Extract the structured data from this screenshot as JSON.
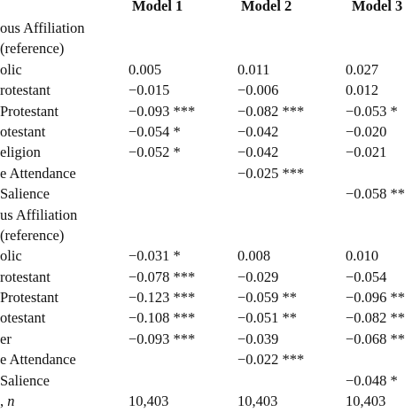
{
  "table": {
    "headers": [
      "Model 1",
      "Model 2",
      "Model 3"
    ],
    "rows": [
      {
        "label": "ous Affiliation",
        "values": [
          "",
          "",
          ""
        ]
      },
      {
        "label": "(reference)",
        "values": [
          "",
          "",
          ""
        ]
      },
      {
        "label": "olic",
        "values": [
          "0.005",
          "0.011",
          "0.027"
        ]
      },
      {
        "label": "rotestant",
        "values": [
          "−0.015",
          "−0.006",
          "0.012"
        ]
      },
      {
        "label": " Protestant",
        "values": [
          "−0.093 ***",
          "−0.082 ***",
          "−0.053 *"
        ]
      },
      {
        "label": "otestant",
        "values": [
          "−0.054 *",
          "−0.042",
          "−0.020"
        ]
      },
      {
        "label": "eligion",
        "values": [
          "−0.052 *",
          "−0.042",
          "−0.021"
        ]
      },
      {
        "label": "e Attendance",
        "values": [
          "",
          "−0.025 ***",
          ""
        ]
      },
      {
        "label": "Salience",
        "values": [
          "",
          "",
          "−0.058 **"
        ]
      },
      {
        "label": "us Affiliation",
        "values": [
          "",
          "",
          ""
        ]
      },
      {
        "label": "(reference)",
        "values": [
          "",
          "",
          ""
        ]
      },
      {
        "label": "olic",
        "values": [
          "−0.031 *",
          "0.008",
          "0.010"
        ]
      },
      {
        "label": "rotestant",
        "values": [
          "−0.078 ***",
          "−0.029",
          "−0.054"
        ]
      },
      {
        "label": " Protestant",
        "values": [
          "−0.123 ***",
          "−0.059 **",
          "−0.096 **"
        ]
      },
      {
        "label": "otestant",
        "values": [
          "−0.108 ***",
          "−0.051 **",
          "−0.082 **"
        ]
      },
      {
        "label": "er",
        "values": [
          "−0.093 ***",
          "−0.039",
          "−0.068 **"
        ]
      },
      {
        "label": "e Attendance",
        "values": [
          "",
          "−0.022 ***",
          ""
        ]
      },
      {
        "label": "Salience",
        "values": [
          "",
          "",
          "−0.048 *"
        ]
      },
      {
        "label": ", n",
        "values": [
          "10,403",
          "10,403",
          "10,403"
        ]
      }
    ]
  }
}
